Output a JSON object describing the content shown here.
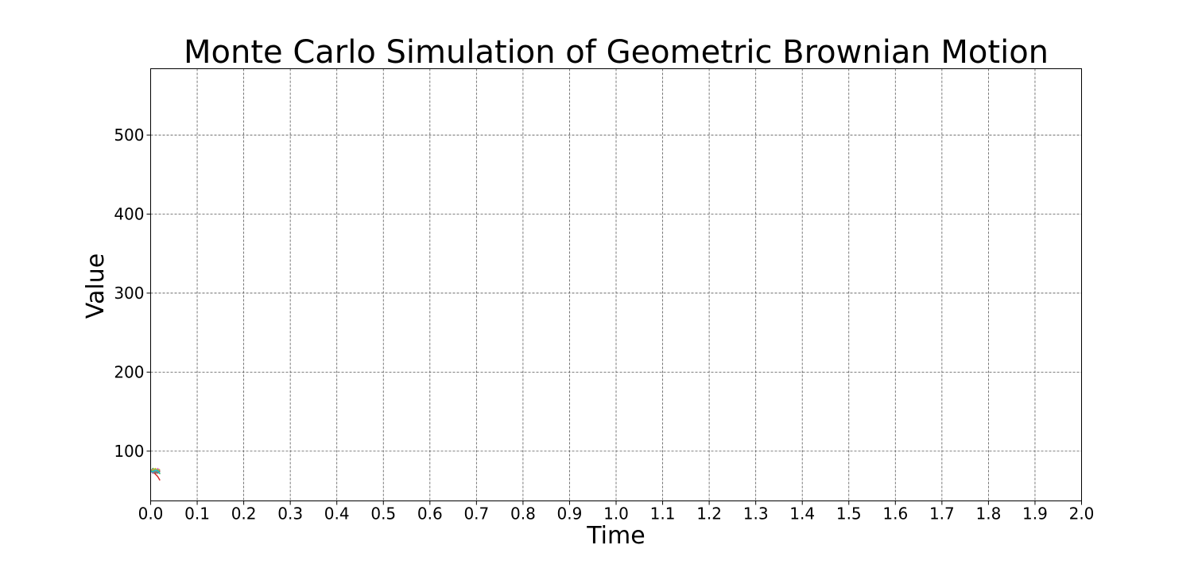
{
  "chart_data": {
    "type": "line",
    "title": "Monte Carlo Simulation of Geometric Brownian Motion",
    "xlabel": "Time",
    "ylabel": "Value",
    "xlim": [
      0.0,
      2.0
    ],
    "ylim": [
      37,
      584
    ],
    "grid": true,
    "legend": "none",
    "xticks": [
      "0.0",
      "0.1",
      "0.2",
      "0.3",
      "0.4",
      "0.5",
      "0.6",
      "0.7",
      "0.8",
      "0.9",
      "1.0",
      "1.1",
      "1.2",
      "1.3",
      "1.4",
      "1.5",
      "1.6",
      "1.7",
      "1.8",
      "1.9",
      "2.0"
    ],
    "yticks": [
      "100",
      "200",
      "300",
      "400",
      "500"
    ],
    "series": [
      {
        "color": "#1f77b4",
        "x": [
          0.0,
          0.005,
          0.01,
          0.015,
          0.02
        ],
        "y": [
          75,
          77,
          73,
          76,
          74
        ]
      },
      {
        "color": "#ff7f0e",
        "x": [
          0.0,
          0.005,
          0.01,
          0.015,
          0.02
        ],
        "y": [
          75,
          73,
          76,
          72,
          75
        ]
      },
      {
        "color": "#2ca02c",
        "x": [
          0.0,
          0.005,
          0.01,
          0.015,
          0.02
        ],
        "y": [
          75,
          78,
          74,
          77,
          71
        ]
      },
      {
        "color": "#d62728",
        "x": [
          0.0,
          0.005,
          0.01,
          0.015,
          0.02
        ],
        "y": [
          75,
          74,
          71,
          68,
          63
        ]
      },
      {
        "color": "#9467bd",
        "x": [
          0.0,
          0.005,
          0.01,
          0.015,
          0.02
        ],
        "y": [
          75,
          72,
          77,
          74,
          76
        ]
      },
      {
        "color": "#8c564b",
        "x": [
          0.0,
          0.005,
          0.01,
          0.015,
          0.02
        ],
        "y": [
          75,
          76,
          72,
          73,
          75
        ]
      },
      {
        "color": "#e377c2",
        "x": [
          0.0,
          0.005,
          0.01,
          0.015,
          0.02
        ],
        "y": [
          75,
          77,
          75,
          78,
          76
        ]
      },
      {
        "color": "#7f7f7f",
        "x": [
          0.0,
          0.005,
          0.01,
          0.015,
          0.02
        ],
        "y": [
          75,
          73,
          74,
          72,
          73
        ]
      },
      {
        "color": "#bcbd22",
        "x": [
          0.0,
          0.005,
          0.01,
          0.015,
          0.02
        ],
        "y": [
          75,
          76,
          78,
          75,
          77
        ]
      },
      {
        "color": "#17becf",
        "x": [
          0.0,
          0.005,
          0.01,
          0.015,
          0.02
        ],
        "y": [
          75,
          74,
          76,
          75,
          72
        ]
      }
    ]
  }
}
